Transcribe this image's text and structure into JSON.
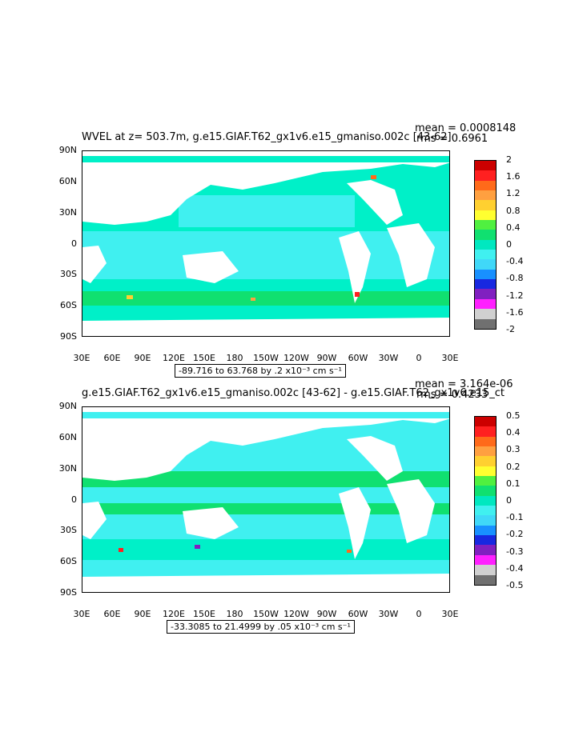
{
  "panels": [
    {
      "id": "top",
      "title": "WVEL at z= 503.7m, g.e15.GIAF.T62_gx1v6.e15_gmaniso.002c [43-62]",
      "mean": "mean = 0.0008148",
      "rms": "rms = 0.6961",
      "range": "-89.716 to 63.768 by .2 x10⁻³ cm s⁻¹",
      "colorbar_labels": [
        "2",
        "1.6",
        "1.2",
        "0.8",
        "0.4",
        "0",
        "-0.4",
        "-0.8",
        "-1.2",
        "-1.6",
        "-2"
      ]
    },
    {
      "id": "bottom",
      "title": "g.e15.GIAF.T62_gx1v6.e15_gmaniso.002c [43-62] - g.e15.GIAF.T62_gx1v6.e15_ct",
      "mean": "mean = 3.164e-06",
      "rms": "rms = 0.4233",
      "range": "-33.3085 to 21.4999 by .05 x10⁻³ cm s⁻¹",
      "colorbar_labels": [
        "0.5",
        "0.4",
        "0.3",
        "0.2",
        "0.1",
        "0",
        "-0.1",
        "-0.2",
        "-0.3",
        "-0.4",
        "-0.5"
      ]
    }
  ],
  "lat_labels": [
    "90N",
    "60N",
    "30N",
    "0",
    "30S",
    "60S",
    "90S"
  ],
  "lon_labels": [
    "30E",
    "60E",
    "90E",
    "120E",
    "150E",
    "180",
    "150W",
    "120W",
    "90W",
    "60W",
    "30W",
    "0",
    "30E"
  ],
  "colors": {
    "ocean_base": "#00f0c8",
    "ocean_cyan": "#40f0f0",
    "land": "#ffffff",
    "palette": [
      "#cc0000",
      "#ff2020",
      "#ff6a1a",
      "#ffa040",
      "#ffd030",
      "#ffff30",
      "#50f040",
      "#10e070",
      "#00e8c0",
      "#40f0f0",
      "#40d8f8",
      "#1890ff",
      "#1828e0",
      "#8020c0",
      "#ff20ff",
      "#d0d0d0",
      "#707070"
    ]
  }
}
